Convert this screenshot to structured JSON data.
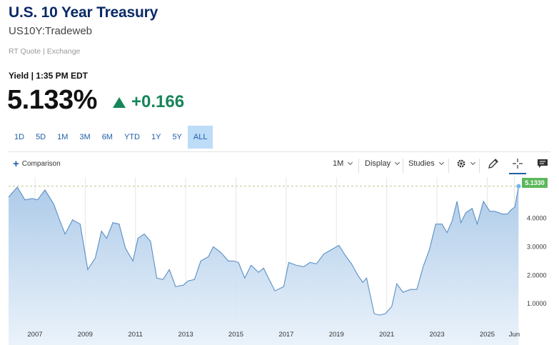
{
  "header": {
    "title": "U.S. 10 Year Treasury",
    "subtitle": "US10Y:Tradeweb",
    "quote_source": "RT Quote | Exchange",
    "yield_time": "Yield | 1:35 PM EDT",
    "price": "5.133%",
    "change": "+0.166",
    "change_color": "#17855a"
  },
  "ranges": [
    {
      "label": "1D",
      "active": false
    },
    {
      "label": "5D",
      "active": false
    },
    {
      "label": "1M",
      "active": false
    },
    {
      "label": "3M",
      "active": false
    },
    {
      "label": "6M",
      "active": false
    },
    {
      "label": "YTD",
      "active": false
    },
    {
      "label": "1Y",
      "active": false
    },
    {
      "label": "5Y",
      "active": false
    },
    {
      "label": "ALL",
      "active": true
    }
  ],
  "toolbar": {
    "comparison_label": "Comparison",
    "interval_label": "1M",
    "display_label": "Display",
    "studies_label": "Studies",
    "icons": [
      "gear-icon",
      "pencil-icon",
      "crosshair-icon",
      "comment-icon"
    ]
  },
  "chart_data": {
    "type": "area",
    "x": [
      2005.95,
      2006.3,
      2006.6,
      2006.9,
      2007.1,
      2007.4,
      2007.75,
      2008.0,
      2008.2,
      2008.5,
      2008.8,
      2009.1,
      2009.4,
      2009.65,
      2009.85,
      2010.1,
      2010.35,
      2010.6,
      2010.9,
      2011.1,
      2011.35,
      2011.6,
      2011.85,
      2012.1,
      2012.35,
      2012.6,
      2012.9,
      2013.1,
      2013.35,
      2013.6,
      2013.9,
      2014.1,
      2014.4,
      2014.7,
      2014.9,
      2015.1,
      2015.35,
      2015.6,
      2015.9,
      2016.1,
      2016.35,
      2016.55,
      2016.9,
      2017.1,
      2017.4,
      2017.7,
      2017.95,
      2018.2,
      2018.5,
      2018.8,
      2019.1,
      2019.35,
      2019.6,
      2019.85,
      2020.05,
      2020.2,
      2020.5,
      2020.7,
      2020.95,
      2021.2,
      2021.4,
      2021.65,
      2021.95,
      2022.2,
      2022.45,
      2022.7,
      2022.95,
      2023.2,
      2023.4,
      2023.6,
      2023.8,
      2023.95,
      2024.15,
      2024.4,
      2024.6,
      2024.85,
      2025.1,
      2025.3,
      2025.6,
      2025.8,
      2025.95,
      2026.1,
      2026.25
    ],
    "values": [
      4.75,
      5.1,
      4.65,
      4.7,
      4.65,
      5.0,
      4.5,
      3.9,
      3.45,
      3.95,
      3.8,
      2.2,
      2.6,
      3.55,
      3.3,
      3.85,
      3.8,
      2.95,
      2.5,
      3.3,
      3.45,
      3.2,
      1.9,
      1.85,
      2.2,
      1.6,
      1.65,
      1.8,
      1.85,
      2.5,
      2.65,
      3.0,
      2.8,
      2.5,
      2.5,
      2.45,
      1.9,
      2.35,
      2.1,
      2.25,
      1.8,
      1.45,
      1.6,
      2.45,
      2.35,
      2.3,
      2.45,
      2.4,
      2.75,
      2.9,
      3.05,
      2.7,
      2.4,
      2.0,
      1.75,
      1.9,
      0.65,
      0.6,
      0.65,
      0.9,
      1.7,
      1.4,
      1.5,
      1.5,
      2.3,
      2.9,
      3.8,
      3.8,
      3.5,
      3.9,
      4.6,
      3.85,
      4.2,
      4.35,
      3.8,
      4.6,
      4.25,
      4.25,
      4.15,
      4.15,
      4.3,
      4.4,
      5.133
    ],
    "xlim": [
      2005.95,
      2026.55
    ],
    "ylim": [
      0.3,
      5.45
    ],
    "yticks": [
      1.0,
      2.0,
      3.0,
      4.0
    ],
    "ytick_labels": [
      "1.0000",
      "2.0000",
      "3.0000",
      "4.0000"
    ],
    "xticks": [
      2007,
      2009,
      2011,
      2013,
      2015,
      2017,
      2019,
      2021,
      2023,
      2025,
      2026.08
    ],
    "xtick_labels": [
      "2007",
      "2009",
      "2011",
      "2013",
      "2015",
      "2017",
      "2019",
      "2021",
      "2023",
      "2025",
      "Jun"
    ],
    "last_value_label": "5.1330",
    "line_color": "#5b8fc4",
    "fill_color": "#b8d2ec",
    "grid": true
  }
}
